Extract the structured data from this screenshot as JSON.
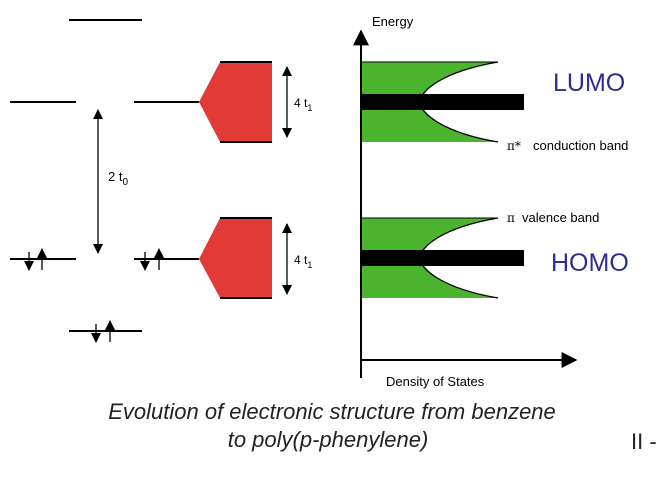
{
  "diagram": {
    "energy_axis_label": "Energy",
    "dos_axis_label": "Density of States",
    "lumo_label": "LUMO",
    "homo_label": "HOMO",
    "gap_label_main": "2 t",
    "gap_label_sub": "0",
    "width_label_main": "4 t",
    "width_label_sub": "1",
    "conduction_band_symbol": "π*",
    "conduction_band_label": "conduction band",
    "valence_band_symbol": "π",
    "valence_band_label": "valence band"
  },
  "caption": {
    "line1": "Evolution of electronic structure from benzene",
    "line2": "to poly(p-phenylene)"
  },
  "slide_tag": "II -",
  "colors": {
    "band_fill": "#4cb32e",
    "trapezoid_fill": "#e23a36",
    "orbital_label": "#2b2e8c",
    "line": "#000000"
  }
}
